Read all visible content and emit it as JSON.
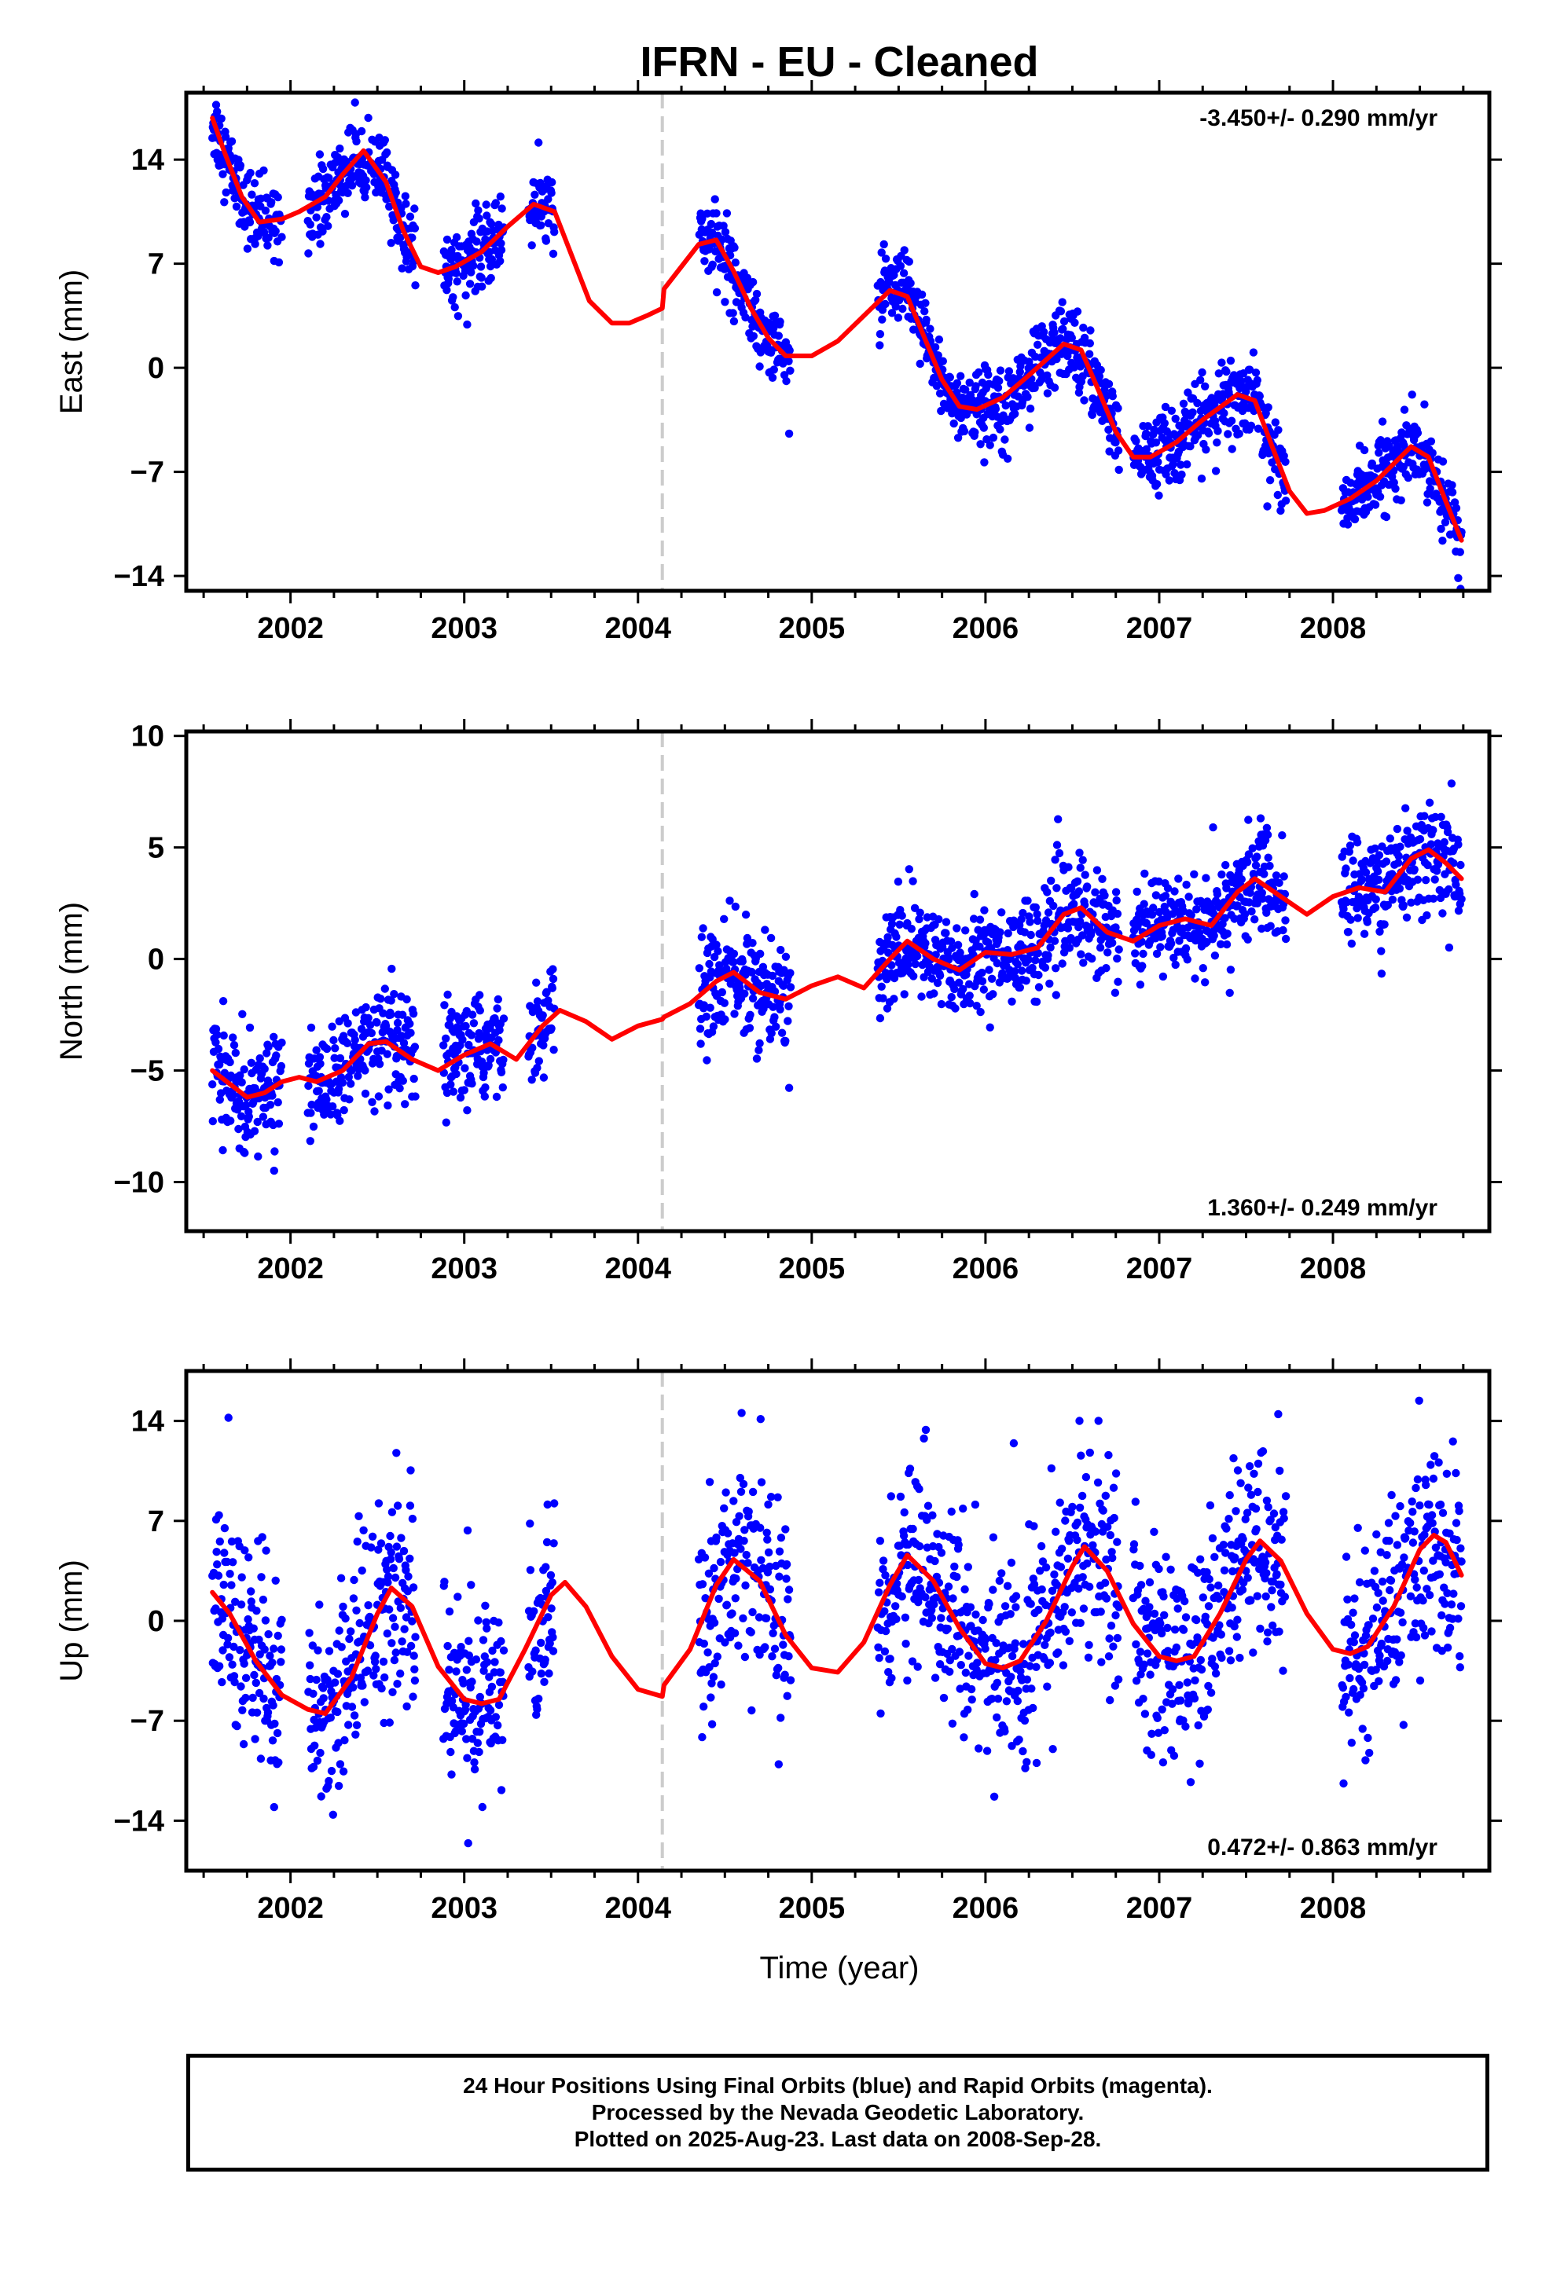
{
  "title": "IFRN  - EU - Cleaned",
  "xlabel": "Time (year)",
  "footer": [
    "24 Hour Positions Using Final Orbits (blue) and Rapid Orbits (magenta).",
    "Processed by the Nevada Geodetic Laboratory.",
    "Plotted on 2025-Aug-23. Last data on 2008-Sep-28."
  ],
  "colors": {
    "points": "#0000ff",
    "model": "#ff0000",
    "break_line": "#cccccc",
    "frame": "#000000"
  },
  "chart_data": [
    {
      "type": "scatter",
      "ylabel": "East (mm)",
      "rate": "-3.450+/- 0.290 mm/yr",
      "rate_position": "top-right",
      "xlim": [
        2001.4,
        2008.9
      ],
      "ylim": [
        -15,
        18.5
      ],
      "xticks": [
        2002,
        2003,
        2004,
        2005,
        2006,
        2007,
        2008
      ],
      "yticks": [
        14,
        7,
        0,
        -7,
        -14
      ],
      "break_x": 2004.14,
      "model": {
        "offset": 23.9,
        "trend": -3.45,
        "annual_amp": 3.5,
        "annual_phase": 0.5,
        "step": -1.5,
        "x": [
          2001.55,
          2001.62,
          2001.72,
          2001.82,
          2001.95,
          2002.05,
          2002.2,
          2002.3,
          2002.42,
          2002.55,
          2002.65,
          2002.75,
          2002.85,
          2002.95,
          2003.1,
          2003.25,
          2003.4,
          2003.52,
          2003.62,
          2003.72,
          2003.85,
          2003.95,
          2004.05,
          2004.14,
          2004.15,
          2004.25,
          2004.35,
          2004.45,
          2004.55,
          2004.65,
          2004.75,
          2004.85,
          2005.0,
          2005.15,
          2005.3,
          2005.45,
          2005.55,
          2005.65,
          2005.75,
          2005.85,
          2005.95,
          2006.1,
          2006.25,
          2006.45,
          2006.55,
          2006.65,
          2006.75,
          2006.85,
          2006.95,
          2007.1,
          2007.25,
          2007.45,
          2007.55,
          2007.65,
          2007.75,
          2007.85,
          2007.95,
          2008.1,
          2008.25,
          2008.45,
          2008.55,
          2008.65,
          2008.74
        ],
        "y": [
          16.8,
          14.5,
          11.5,
          9.8,
          10.0,
          10.5,
          11.5,
          13.0,
          14.6,
          12.5,
          9.2,
          6.8,
          6.4,
          6.8,
          7.8,
          9.5,
          11.0,
          10.5,
          7.5,
          4.5,
          3.0,
          3.0,
          3.5,
          4.0,
          5.3,
          6.8,
          8.3,
          8.6,
          6.5,
          4.0,
          2.0,
          0.8,
          0.8,
          1.8,
          3.5,
          5.2,
          4.8,
          2.0,
          -0.8,
          -2.6,
          -2.8,
          -2.0,
          -0.5,
          1.6,
          1.2,
          -1.5,
          -4.3,
          -6.0,
          -6.0,
          -5.0,
          -3.5,
          -1.8,
          -2.2,
          -5.3,
          -8.3,
          -9.8,
          -9.6,
          -8.8,
          -7.6,
          -5.3,
          -6.0,
          -9.0,
          -11.6
        ]
      },
      "points": {
        "segments": [
          [
            2001.55,
            2001.95
          ],
          [
            2002.1,
            2002.72
          ],
          [
            2002.88,
            2003.23
          ],
          [
            2003.37,
            2003.52
          ],
          [
            2004.35,
            2004.88
          ],
          [
            2005.38,
            2006.77
          ],
          [
            2006.85,
            2007.73
          ],
          [
            2008.05,
            2008.74
          ]
        ],
        "scatter_sd": 1.3
      }
    },
    {
      "type": "scatter",
      "ylabel": "North (mm)",
      "rate": "1.360+/- 0.249 mm/yr",
      "rate_position": "bottom-right",
      "xlim": [
        2001.4,
        2008.9
      ],
      "ylim": [
        -12.2,
        10.2
      ],
      "xticks": [
        2002,
        2003,
        2004,
        2005,
        2006,
        2007,
        2008
      ],
      "yticks": [
        10,
        5,
        0,
        -5,
        -10
      ],
      "break_x": 2004.14,
      "model": {
        "offset": -8.6,
        "trend": 1.36,
        "annual_amp": 0.9,
        "annual_phase": 0.58,
        "step": 0.3,
        "x": [
          2001.55,
          2001.65,
          2001.75,
          2001.85,
          2001.95,
          2002.05,
          2002.15,
          2002.3,
          2002.45,
          2002.55,
          2002.7,
          2002.85,
          2003.0,
          2003.15,
          2003.3,
          2003.45,
          2003.55,
          2003.7,
          2003.85,
          2004.0,
          2004.14,
          2004.15,
          2004.3,
          2004.45,
          2004.55,
          2004.7,
          2004.85,
          2005.0,
          2005.15,
          2005.3,
          2005.45,
          2005.55,
          2005.7,
          2005.85,
          2006.0,
          2006.15,
          2006.3,
          2006.45,
          2006.55,
          2006.7,
          2006.85,
          2007.0,
          2007.15,
          2007.3,
          2007.45,
          2007.55,
          2007.7,
          2007.85,
          2008.0,
          2008.15,
          2008.3,
          2008.45,
          2008.55,
          2008.65,
          2008.74
        ],
        "y": [
          -5.0,
          -5.6,
          -6.2,
          -6.0,
          -5.5,
          -5.3,
          -5.5,
          -5.0,
          -3.8,
          -3.7,
          -4.5,
          -5.0,
          -4.3,
          -3.8,
          -4.5,
          -3.0,
          -2.3,
          -2.8,
          -3.6,
          -3.0,
          -2.7,
          -2.6,
          -2.0,
          -1.0,
          -0.6,
          -1.5,
          -1.8,
          -1.2,
          -0.8,
          -1.3,
          0.0,
          0.8,
          0.0,
          -0.5,
          0.3,
          0.2,
          0.5,
          2.0,
          2.3,
          1.2,
          0.8,
          1.5,
          1.8,
          1.5,
          3.0,
          3.6,
          2.8,
          2.0,
          2.8,
          3.2,
          3.0,
          4.5,
          4.9,
          4.3,
          3.6
        ]
      },
      "points": {
        "segments": [
          [
            2001.55,
            2001.95
          ],
          [
            2002.1,
            2002.72
          ],
          [
            2002.88,
            2003.23
          ],
          [
            2003.37,
            2003.52
          ],
          [
            2004.35,
            2004.88
          ],
          [
            2005.38,
            2006.77
          ],
          [
            2006.85,
            2007.73
          ],
          [
            2008.05,
            2008.74
          ]
        ],
        "scatter_sd": 1.2
      }
    },
    {
      "type": "scatter",
      "ylabel": "Up (mm)",
      "rate": "0.472+/- 0.863 mm/yr",
      "rate_position": "bottom-right",
      "xlim": [
        2001.4,
        2008.9
      ],
      "ylim": [
        -17.5,
        17.5
      ],
      "xticks": [
        2002,
        2003,
        2004,
        2005,
        2006,
        2007,
        2008
      ],
      "yticks": [
        14,
        7,
        0,
        -7,
        -14
      ],
      "break_x": 2004.14,
      "model": {
        "offset": -2.0,
        "trend": 0.472,
        "annual_amp": 4.5,
        "annual_phase": 0.33,
        "step": 1.0,
        "x": [
          2001.55,
          2001.65,
          2001.8,
          2001.95,
          2002.1,
          2002.2,
          2002.35,
          2002.5,
          2002.58,
          2002.7,
          2002.85,
          2003.0,
          2003.1,
          2003.2,
          2003.35,
          2003.5,
          2003.58,
          2003.7,
          2003.85,
          2004.0,
          2004.14,
          2004.15,
          2004.3,
          2004.45,
          2004.55,
          2004.7,
          2004.85,
          2005.0,
          2005.15,
          2005.3,
          2005.45,
          2005.55,
          2005.7,
          2005.85,
          2006.0,
          2006.1,
          2006.2,
          2006.35,
          2006.5,
          2006.57,
          2006.7,
          2006.85,
          2007.0,
          2007.1,
          2007.2,
          2007.35,
          2007.5,
          2007.58,
          2007.7,
          2007.85,
          2008.0,
          2008.1,
          2008.2,
          2008.35,
          2008.5,
          2008.58,
          2008.65,
          2008.74
        ],
        "y": [
          2.0,
          0.5,
          -2.8,
          -5.2,
          -6.2,
          -6.5,
          -4.0,
          0.5,
          2.3,
          1.0,
          -3.2,
          -5.5,
          -5.8,
          -5.5,
          -2.0,
          1.8,
          2.7,
          1.0,
          -2.5,
          -4.8,
          -5.3,
          -4.5,
          -2.0,
          2.5,
          4.3,
          2.8,
          -1.0,
          -3.3,
          -3.6,
          -1.5,
          2.5,
          4.6,
          2.8,
          -0.5,
          -3.0,
          -3.3,
          -2.8,
          0.0,
          3.8,
          5.2,
          3.5,
          -0.2,
          -2.5,
          -2.8,
          -2.5,
          0.5,
          4.3,
          5.6,
          4.2,
          0.5,
          -2.0,
          -2.3,
          -1.8,
          1.0,
          5.0,
          6.0,
          5.5,
          3.2
        ]
      },
      "points": {
        "segments": [
          [
            2001.55,
            2001.95
          ],
          [
            2002.1,
            2002.72
          ],
          [
            2002.88,
            2003.23
          ],
          [
            2003.37,
            2003.52
          ],
          [
            2004.35,
            2004.88
          ],
          [
            2005.38,
            2006.77
          ],
          [
            2006.85,
            2007.73
          ],
          [
            2008.05,
            2008.74
          ]
        ],
        "scatter_sd": 3.6
      }
    }
  ]
}
